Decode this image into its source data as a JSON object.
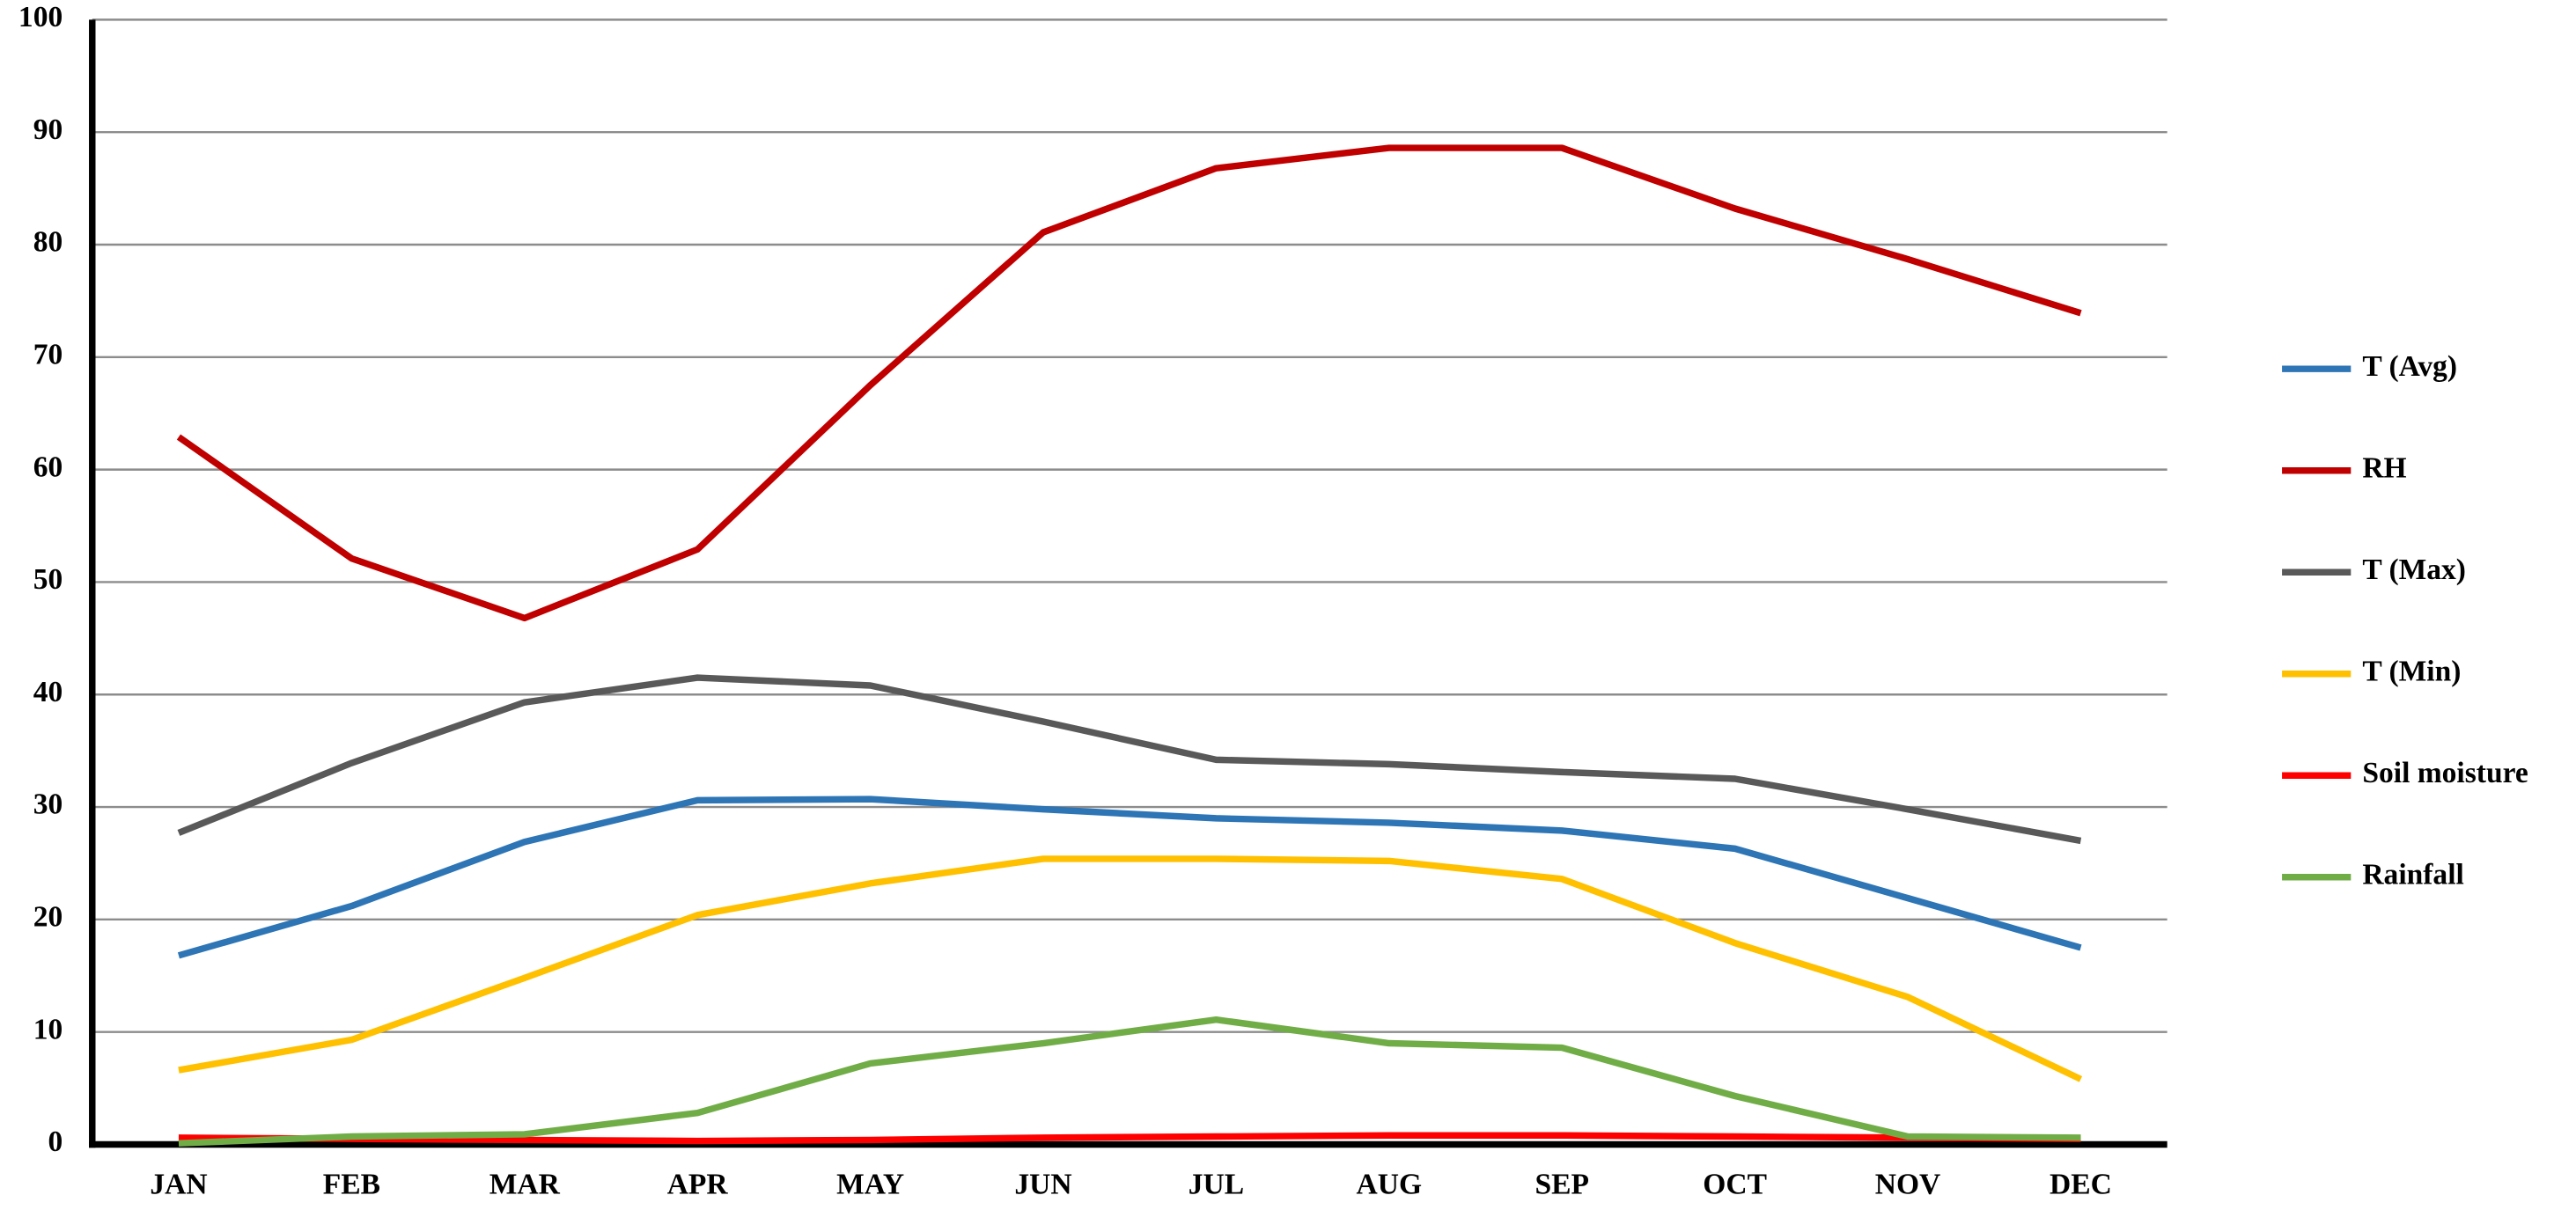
{
  "chart_data": {
    "type": "line",
    "categories": [
      "JAN",
      "FEB",
      "MAR",
      "APR",
      "MAY",
      "JUN",
      "JUL",
      "AUG",
      "SEP",
      "OCT",
      "NOV",
      "DEC"
    ],
    "series": [
      {
        "name": "T (Avg)",
        "color": "#2e75b6",
        "values": [
          16.8,
          21.2,
          26.9,
          30.6,
          30.7,
          29.8,
          29.0,
          28.6,
          27.9,
          26.3,
          21.9,
          17.5
        ]
      },
      {
        "name": "RH",
        "color": "#c00000",
        "values": [
          62.9,
          52.1,
          46.8,
          52.9,
          67.5,
          81.1,
          86.8,
          88.6,
          88.6,
          83.2,
          78.7,
          73.9
        ]
      },
      {
        "name": "T (Max)",
        "color": "#595959",
        "values": [
          27.7,
          33.9,
          39.3,
          41.5,
          40.8,
          37.6,
          34.2,
          33.8,
          33.1,
          32.5,
          29.8,
          27.0
        ]
      },
      {
        "name": "T (Min)",
        "color": "#ffc000",
        "values": [
          6.6,
          9.3,
          14.8,
          20.4,
          23.2,
          25.4,
          25.4,
          25.2,
          23.6,
          17.9,
          13.1,
          5.8
        ]
      },
      {
        "name": "Soil moisture",
        "color": "#ff0000",
        "values": [
          0.6,
          0.5,
          0.4,
          0.3,
          0.4,
          0.6,
          0.7,
          0.8,
          0.8,
          0.7,
          0.6,
          0.5
        ]
      },
      {
        "name": "Rainfall",
        "color": "#70ad47",
        "values": [
          0.1,
          0.7,
          0.9,
          2.8,
          7.2,
          9.0,
          11.1,
          9.0,
          8.6,
          4.3,
          0.7,
          0.6
        ]
      }
    ],
    "ylim": [
      0,
      100
    ],
    "yticks": [
      0,
      10,
      20,
      30,
      40,
      50,
      60,
      70,
      80,
      90,
      100
    ],
    "grid": true,
    "legend": "right"
  }
}
